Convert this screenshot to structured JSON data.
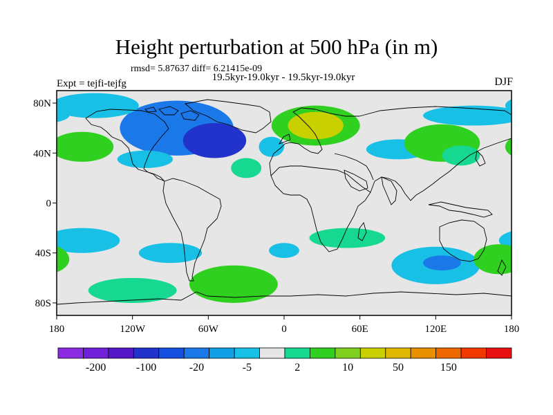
{
  "title": "Height perturbation at 500 hPa (in m)",
  "stats_text": "rmsd= 5.87637 diff= 6.21415e-09",
  "subtitle": "19.5kyr-19.0kyr - 19.5kyr-19.0kyr",
  "experiment": "Expt = tejfi-tejfg",
  "season": "DJF",
  "map": {
    "projection": "cylindrical equidistant",
    "lon_range": [
      -180,
      180
    ],
    "lat_range": [
      -90,
      90
    ],
    "background_color": "#e6e6e6",
    "coastline_color": "#000000",
    "x_ticks": [
      {
        "value": -180,
        "label": "180"
      },
      {
        "value": -120,
        "label": "120W"
      },
      {
        "value": -60,
        "label": "60W"
      },
      {
        "value": 0,
        "label": "0"
      },
      {
        "value": 60,
        "label": "60E"
      },
      {
        "value": 120,
        "label": "120E"
      },
      {
        "value": 180,
        "label": "180"
      }
    ],
    "y_ticks": [
      {
        "value": 80,
        "label": "80N"
      },
      {
        "value": 40,
        "label": "40N"
      },
      {
        "value": 0,
        "label": "0"
      },
      {
        "value": -40,
        "label": "40S"
      },
      {
        "value": -80,
        "label": "80S"
      }
    ],
    "anomalies": [
      {
        "lon": -85,
        "lat": 60,
        "lx": 45,
        "ly": 22,
        "lvl": -20
      },
      {
        "lon": -55,
        "lat": 50,
        "lx": 25,
        "ly": 14,
        "lvl": -100
      },
      {
        "lon": -150,
        "lat": 78,
        "lx": 35,
        "ly": 10,
        "lvl": -5
      },
      {
        "lon": -160,
        "lat": 45,
        "lx": 25,
        "ly": 12,
        "lvl": 10
      },
      {
        "lon": -110,
        "lat": 35,
        "lx": 22,
        "ly": 7,
        "lvl": -5
      },
      {
        "lon": -10,
        "lat": 45,
        "lx": 10,
        "ly": 8,
        "lvl": -5
      },
      {
        "lon": -30,
        "lat": 28,
        "lx": 12,
        "ly": 8,
        "lvl": 2
      },
      {
        "lon": 25,
        "lat": 62,
        "lx": 35,
        "ly": 16,
        "lvl": 10
      },
      {
        "lon": 25,
        "lat": 62,
        "lx": 22,
        "ly": 11,
        "lvl": 50
      },
      {
        "lon": 90,
        "lat": 43,
        "lx": 25,
        "ly": 8,
        "lvl": -5
      },
      {
        "lon": 125,
        "lat": 48,
        "lx": 30,
        "ly": 15,
        "lvl": 10
      },
      {
        "lon": 140,
        "lat": 38,
        "lx": 15,
        "ly": 8,
        "lvl": 2
      },
      {
        "lon": 150,
        "lat": 70,
        "lx": 40,
        "ly": 8,
        "lvl": -5
      },
      {
        "lon": -160,
        "lat": -30,
        "lx": 30,
        "ly": 10,
        "lvl": -5
      },
      {
        "lon": -90,
        "lat": -40,
        "lx": 25,
        "ly": 8,
        "lvl": -5
      },
      {
        "lon": -40,
        "lat": -65,
        "lx": 35,
        "ly": 15,
        "lvl": 10
      },
      {
        "lon": -120,
        "lat": -70,
        "lx": 35,
        "ly": 10,
        "lvl": 2
      },
      {
        "lon": 0,
        "lat": -38,
        "lx": 12,
        "ly": 6,
        "lvl": -5
      },
      {
        "lon": 50,
        "lat": -28,
        "lx": 30,
        "ly": 8,
        "lvl": 2
      },
      {
        "lon": 120,
        "lat": -50,
        "lx": 35,
        "ly": 15,
        "lvl": -5
      },
      {
        "lon": 125,
        "lat": -48,
        "lx": 15,
        "ly": 6,
        "lvl": -20
      },
      {
        "lon": 170,
        "lat": -45,
        "lx": 20,
        "ly": 12,
        "lvl": 10
      }
    ]
  },
  "colorbar": {
    "colors": [
      "#8b2be2",
      "#7020d8",
      "#5518c8",
      "#2233cc",
      "#1550e0",
      "#1a78e8",
      "#10a0e8",
      "#18c0e6",
      "#e6e6e6",
      "#16d890",
      "#30d020",
      "#80d020",
      "#c8d000",
      "#e0b800",
      "#e89000",
      "#ee6800",
      "#f03800",
      "#e81010"
    ],
    "labels": [
      {
        "index": 1,
        "text": "-200"
      },
      {
        "index": 3,
        "text": "-100"
      },
      {
        "index": 5,
        "text": "-20"
      },
      {
        "index": 7,
        "text": "-5"
      },
      {
        "index": 9,
        "text": "2"
      },
      {
        "index": 11,
        "text": "10"
      },
      {
        "index": 13,
        "text": "50"
      },
      {
        "index": 15,
        "text": "150"
      }
    ]
  }
}
